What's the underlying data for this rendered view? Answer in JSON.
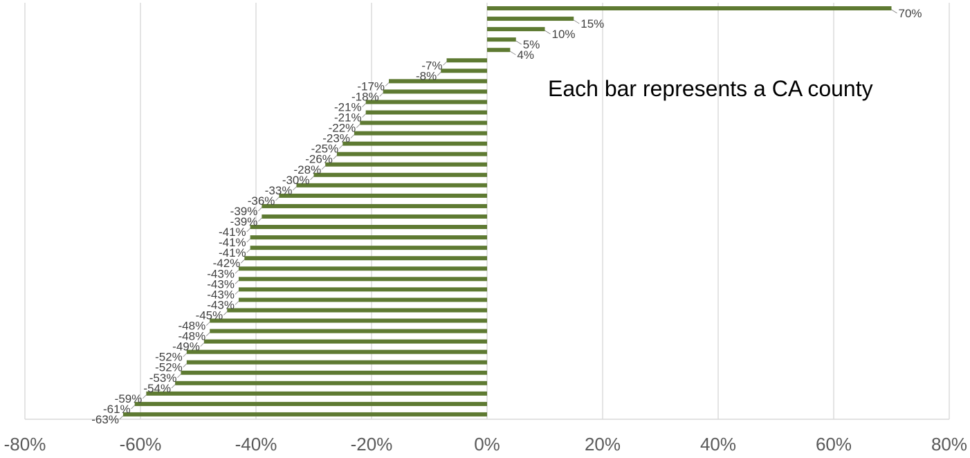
{
  "chart_data": {
    "type": "bar",
    "orientation": "horizontal",
    "title": "",
    "xlabel": "",
    "ylabel": "",
    "annotation": "Each bar represents a CA county",
    "xlim": [
      -80,
      80
    ],
    "x_ticks": [
      -80,
      -60,
      -40,
      -20,
      0,
      20,
      40,
      60,
      80
    ],
    "x_tick_labels": [
      "-80%",
      "-60%",
      "-40%",
      "-20%",
      "0%",
      "20%",
      "40%",
      "60%",
      "80%"
    ],
    "grid": true,
    "legend": "none",
    "bar_color": "#5e7a32",
    "values": [
      70,
      15,
      10,
      5,
      4,
      -7,
      -8,
      -17,
      -18,
      -21,
      -21,
      -22,
      -23,
      -25,
      -26,
      -28,
      -30,
      -33,
      -36,
      -39,
      -39,
      -41,
      -41,
      -41,
      -42,
      -43,
      -43,
      -43,
      -43,
      -45,
      -48,
      -48,
      -49,
      -52,
      -52,
      -53,
      -54,
      -59,
      -61,
      -63
    ],
    "labels": [
      "70%",
      "15%",
      "10%",
      "5%",
      "4%",
      "-7%",
      "-8%",
      "-17%",
      "-18%",
      "-21%",
      "-21%",
      "-22%",
      "-23%",
      "-25%",
      "-26%",
      "-28%",
      "-30%",
      "-33%",
      "-36%",
      "-39%",
      "-39%",
      "-41%",
      "-41%",
      "-41%",
      "-42%",
      "-43%",
      "-43%",
      "-43%",
      "-43%",
      "-45%",
      "-48%",
      "-48%",
      "-49%",
      "-52%",
      "-52%",
      "-53%",
      "-54%",
      "-59%",
      "-61%",
      "-63%"
    ]
  }
}
